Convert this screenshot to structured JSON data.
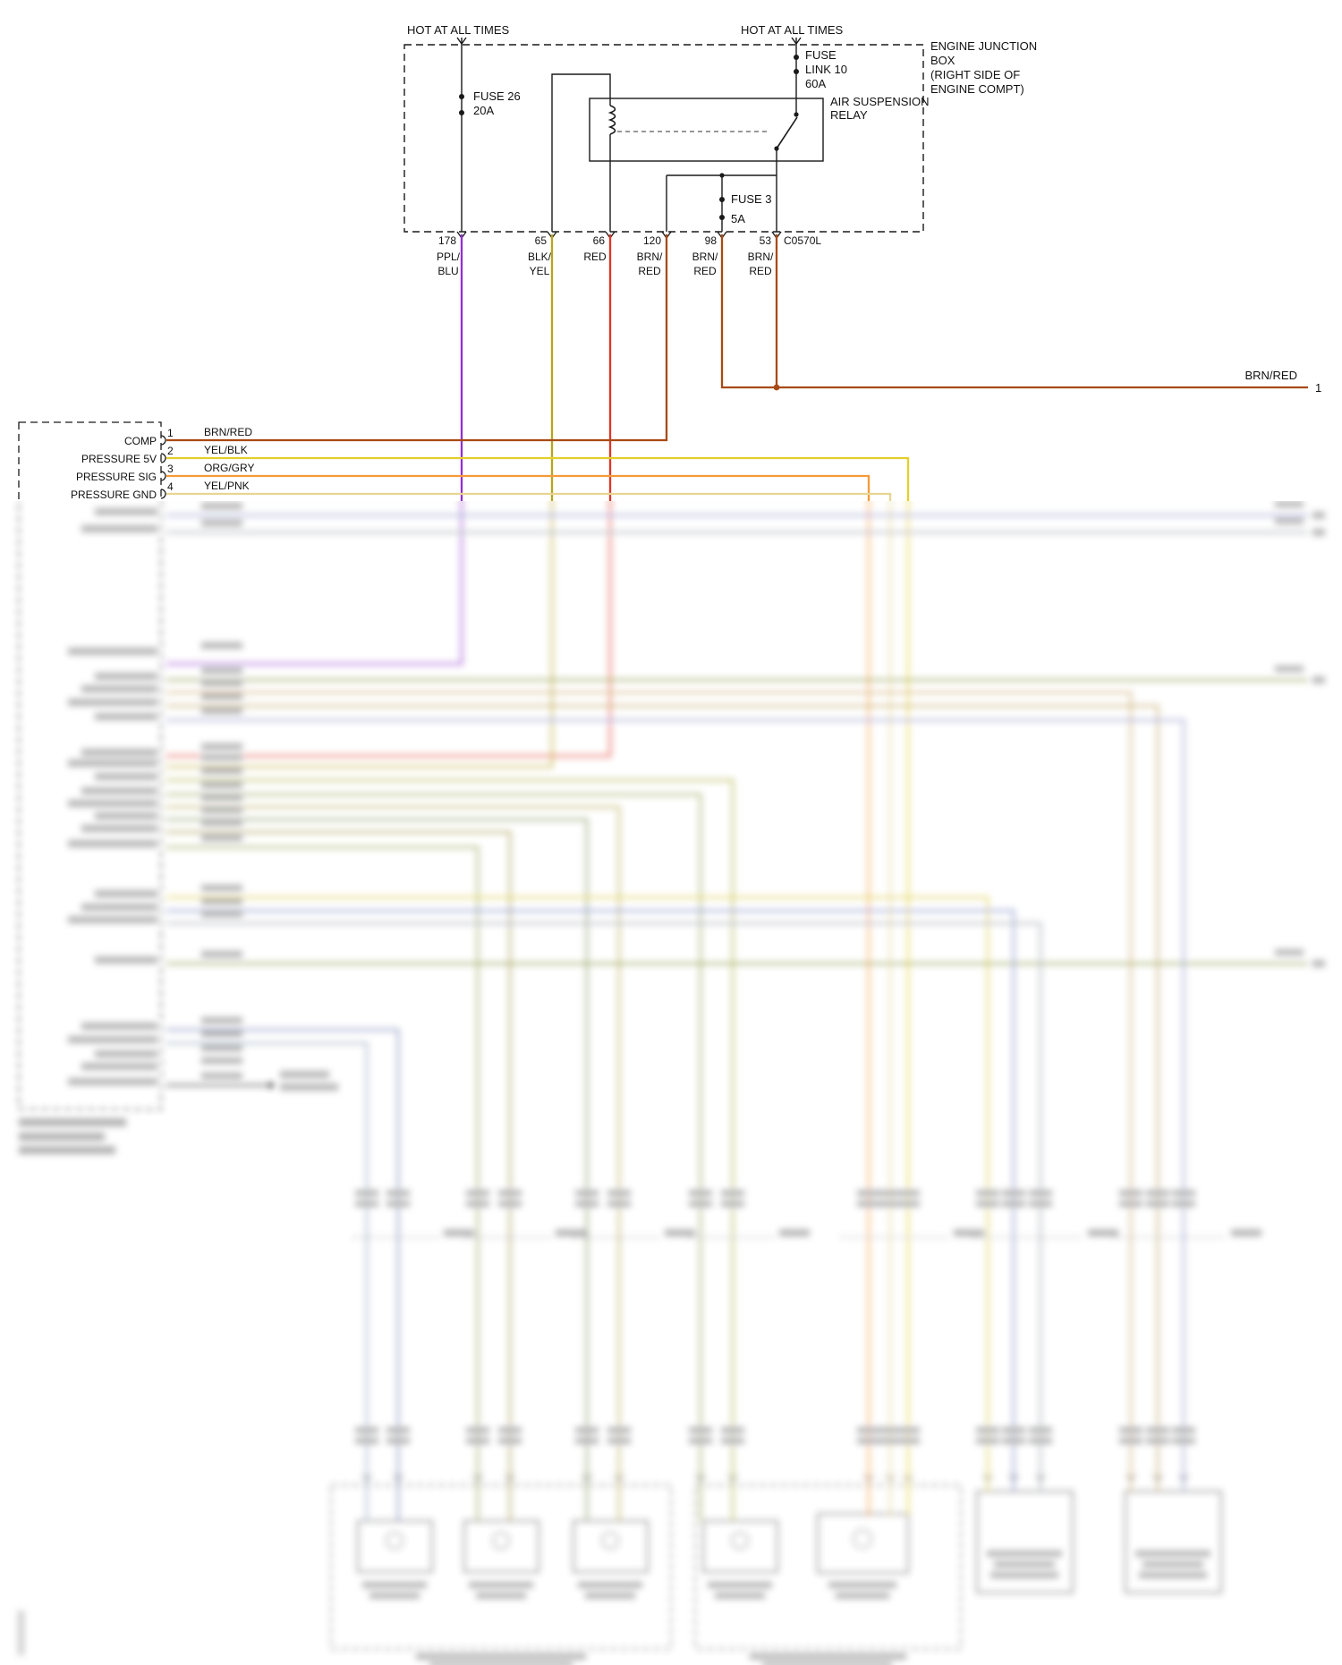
{
  "top": {
    "hot_left": "HOT AT ALL TIMES",
    "hot_right": "HOT AT ALL TIMES",
    "junction_box": {
      "line1": "ENGINE JUNCTION",
      "line2": "BOX",
      "line3": "(RIGHT SIDE OF",
      "line4": "ENGINE COMPT)"
    },
    "fuse26": {
      "line1": "FUSE 26",
      "line2": "20A"
    },
    "fuse_link10": {
      "line1": "FUSE",
      "line2": "LINK 10",
      "line3": "60A"
    },
    "fuse3": {
      "line1": "FUSE 3",
      "line2": "5A"
    },
    "relay": {
      "line1": "AIR SUSPENSION",
      "line2": "RELAY"
    },
    "connector_label": "C0570L",
    "pins": {
      "p178": "178",
      "p65": "65",
      "p66": "66",
      "p120": "120",
      "p98": "98",
      "p53": "53"
    },
    "wire_labels": {
      "w178a": "PPL/",
      "w178b": "BLU",
      "w65a": "BLK/",
      "w65b": "YEL",
      "w66": "RED",
      "w120a": "BRN/",
      "w120b": "RED",
      "w98a": "BRN/",
      "w98b": "RED",
      "w53a": "BRN/",
      "w53b": "RED"
    },
    "branch_right": {
      "label": "BRN/RED",
      "pin": "1"
    }
  },
  "module": {
    "pin1": {
      "num": "1",
      "name": "COMP",
      "wire": "BRN/RED"
    },
    "pin2": {
      "num": "2",
      "name": "PRESSURE 5V",
      "wire": "YEL/BLK"
    },
    "pin3": {
      "num": "3",
      "name": "PRESSURE SIG",
      "wire": "ORG/GRY"
    },
    "pin4": {
      "num": "4",
      "name": "PRESSURE GND",
      "wire": "YEL/PNK"
    }
  },
  "colors": {
    "ppl_blu": "#9130cf",
    "blk_yel": "#b8a420",
    "red": "#e03424",
    "brn_red": "#a84a14",
    "yel_blk": "#e3cf2a",
    "org_gry": "#f59a38",
    "yel_pnk": "#e8d592",
    "line_black": "#1a1a1a"
  }
}
